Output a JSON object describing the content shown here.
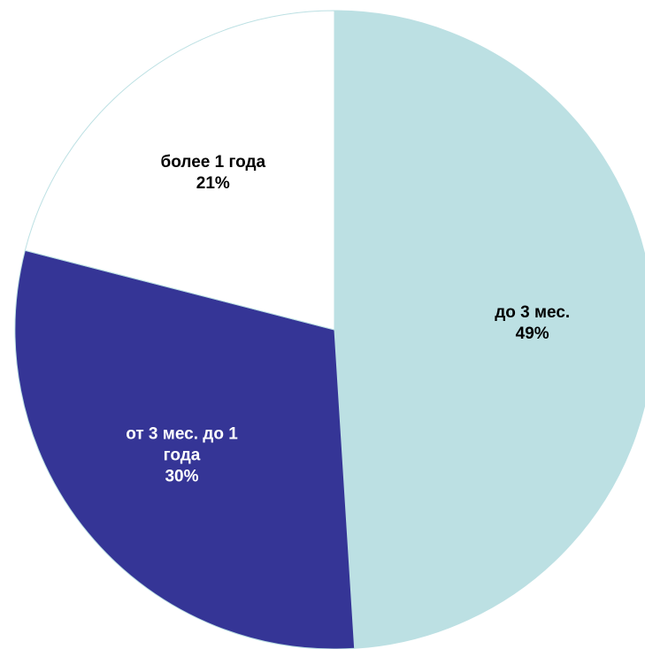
{
  "chart_data": {
    "type": "pie",
    "title": "",
    "slices": [
      {
        "label_lines": [
          "до 3 мес."
        ],
        "value": 49,
        "percent_label": "49%",
        "color": "#bce0e3",
        "text_color": "#000000"
      },
      {
        "label_lines": [
          "от 3 мес. до 1",
          "года"
        ],
        "value": 30,
        "percent_label": "30%",
        "color": "#353596",
        "text_color": "#ffffff"
      },
      {
        "label_lines": [
          "более 1 года"
        ],
        "value": 21,
        "percent_label": "21%",
        "color": "#ffffff",
        "text_color": "#000000"
      }
    ],
    "start_angle_deg": 0,
    "direction": "clockwise",
    "slice_border_color": "#bce0e3",
    "legend": "none"
  }
}
